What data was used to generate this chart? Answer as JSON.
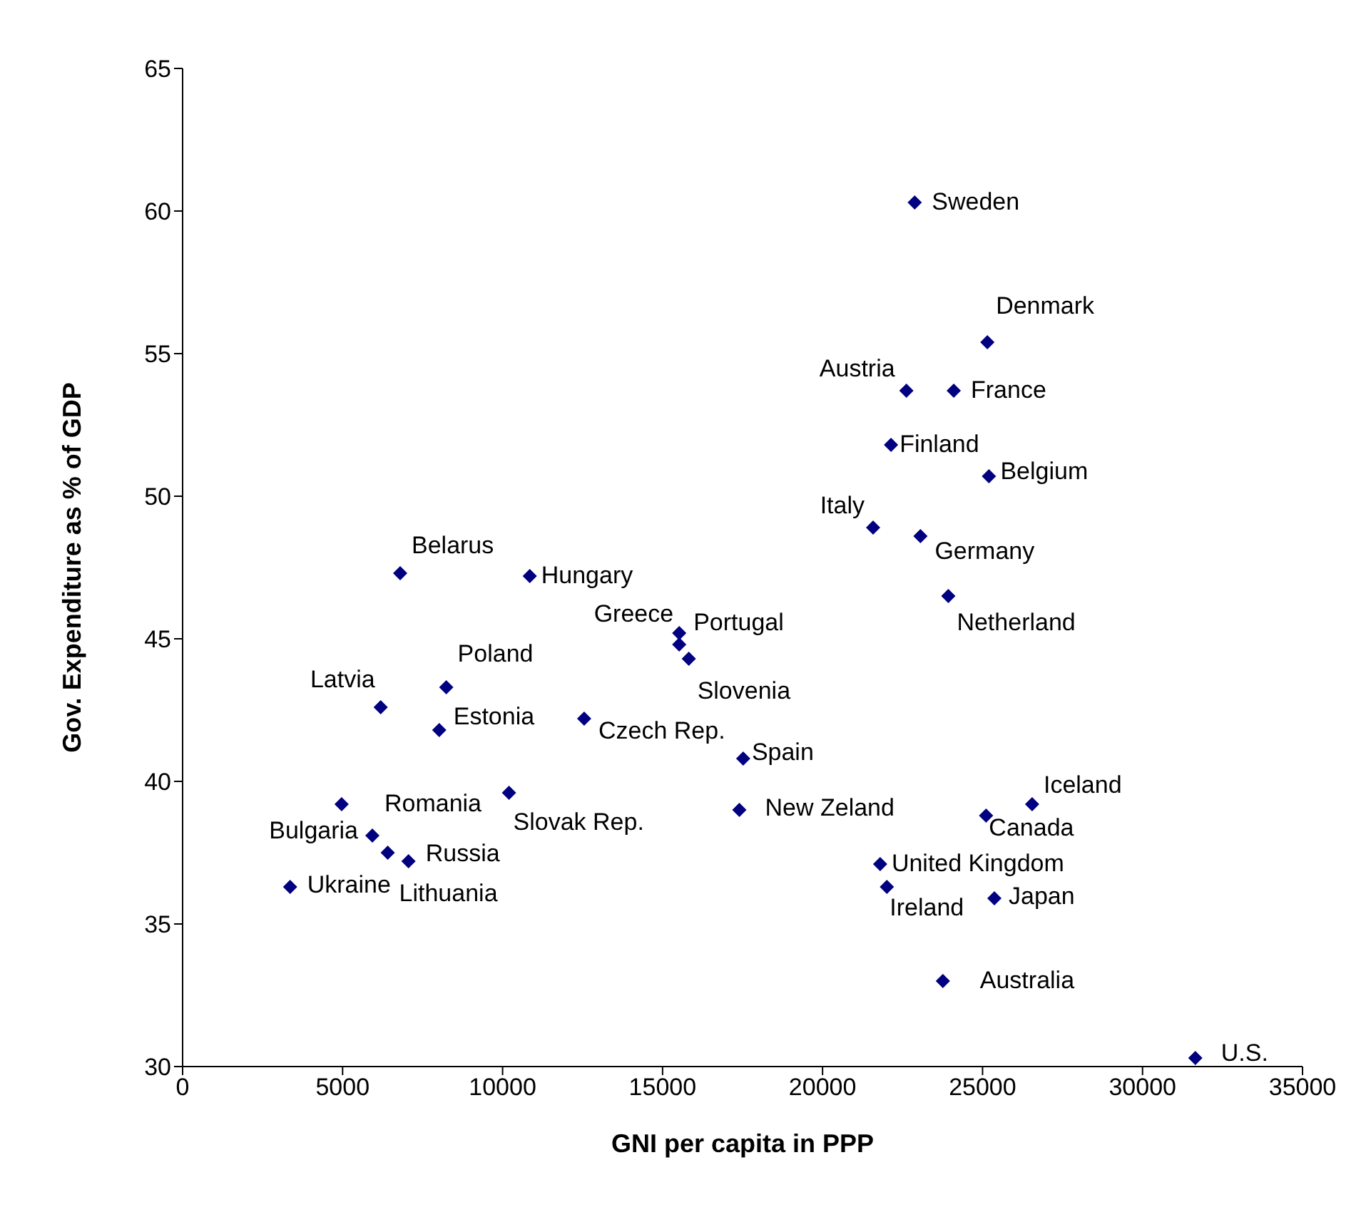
{
  "chart_data": {
    "type": "scatter",
    "xlabel": "GNI per capita in PPP",
    "ylabel": "Gov. Expenditure as % of GDP",
    "xlim": [
      0,
      35000
    ],
    "xticks": [
      0,
      5000,
      10000,
      15000,
      20000,
      25000,
      30000,
      35000
    ],
    "ylim": [
      30,
      65
    ],
    "yticks": [
      30,
      35,
      40,
      45,
      50,
      55,
      60,
      65
    ],
    "grid": false,
    "legend": false,
    "marker": "diamond",
    "series": [
      {
        "color": "#000080",
        "x": [
          22880,
          25150,
          22620,
          24100,
          22140,
          25200,
          21580,
          23060,
          23930,
          6800,
          10850,
          15520,
          15520,
          15820,
          8240,
          6190,
          8020,
          12550,
          17520,
          4970,
          10200,
          17400,
          26550,
          25110,
          21800,
          22010,
          25370,
          23760,
          31650,
          5930,
          6410,
          7060,
          3360
        ],
        "values": [
          60.3,
          55.4,
          53.7,
          53.7,
          51.8,
          50.7,
          48.9,
          48.6,
          46.5,
          47.3,
          47.2,
          45.2,
          44.8,
          44.3,
          43.3,
          42.6,
          41.8,
          42.2,
          40.8,
          39.2,
          39.6,
          39.0,
          39.2,
          38.8,
          37.1,
          36.3,
          35.9,
          33.0,
          30.3,
          38.1,
          37.5,
          37.2,
          36.3
        ],
        "value_labels": [
          "Sweden",
          "Denmark",
          "Austria",
          "France",
          "Finland",
          "Belgium",
          "Italy",
          "Germany",
          "Netherland",
          "Belarus",
          "Hungary",
          "Greece",
          "Portugal",
          "Slovenia",
          "Poland",
          "Latvia",
          "Estonia",
          "Czech Rep.",
          "Spain",
          "Romania",
          "Slovak Rep.",
          "New Zeland",
          "Iceland",
          "Canada",
          "United Kingdom",
          "Ireland",
          "Japan",
          "Australia",
          "U.S.",
          "Bulgaria",
          "Lithuania",
          "Russia",
          "Ukraine"
        ]
      }
    ]
  }
}
